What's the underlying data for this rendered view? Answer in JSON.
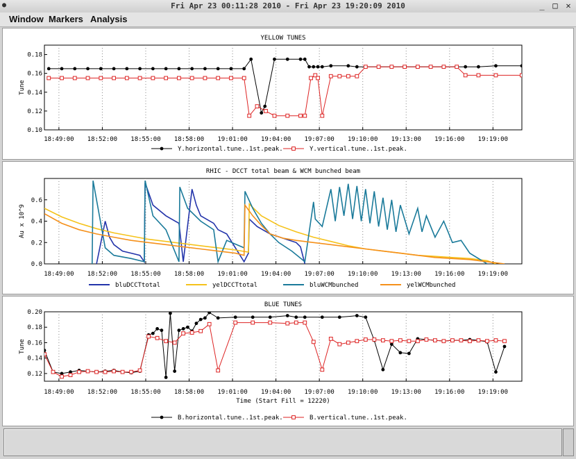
{
  "window": {
    "title": "Fri Apr 23 00:11:28 2010    -    Fri Apr 23 19:20:09 2010",
    "title_icon": "app-icon",
    "buttons": [
      "minimize-icon",
      "maximize-icon",
      "close-icon"
    ]
  },
  "menu": {
    "items": [
      "Window",
      "Markers",
      "Analysis"
    ]
  },
  "colors": {
    "black_series": "#000000",
    "red_series": "#dd2222",
    "bluDCCTtotal": "#2233aa",
    "yelDCCTtotal": "#f5c21a",
    "bluWCMbunched": "#1a7a9a",
    "yelWCMbunched": "#f5901a"
  },
  "chart_data": [
    {
      "type": "line",
      "title": "YELLOW TUNES",
      "ylabel": "Tune",
      "xlabel": "",
      "xlim": [
        18.8,
        19.35
      ],
      "ylim": [
        0.1,
        0.19
      ],
      "yticks": [
        0.1,
        0.12,
        0.14,
        0.16,
        0.18
      ],
      "ytick_labels": [
        "0.10",
        "0.12",
        "0.14",
        "0.16",
        "0.18"
      ],
      "xticks": [
        18.8167,
        18.8667,
        18.9167,
        18.9667,
        19.0167,
        19.0667,
        19.1167,
        19.1667,
        19.2167,
        19.2667,
        19.3167
      ],
      "xtick_labels": [
        "18:49:00",
        "18:52:00",
        "18:55:00",
        "18:58:00",
        "19:01:00",
        "19:04:00",
        "19:07:00",
        "19:10:00",
        "19:13:00",
        "19:16:00",
        "19:19:00"
      ],
      "grid": "vertical-dotted",
      "legend": "bottom",
      "series": [
        {
          "name": "Y.horizontal.tune..1st.peak.",
          "color": "#000000",
          "marker": "filled-circle",
          "x": [
            18.805,
            18.82,
            18.835,
            18.85,
            18.865,
            18.88,
            18.895,
            18.91,
            18.925,
            18.94,
            18.955,
            18.97,
            18.985,
            19.0,
            19.015,
            19.03,
            19.038,
            19.05,
            19.054,
            19.065,
            19.08,
            19.095,
            19.1,
            19.105,
            19.11,
            19.115,
            19.12,
            19.13,
            19.15,
            19.16,
            19.17,
            19.185,
            19.2,
            19.215,
            19.23,
            19.245,
            19.26,
            19.275,
            19.285,
            19.3,
            19.32,
            19.35
          ],
          "y": [
            0.165,
            0.165,
            0.165,
            0.165,
            0.165,
            0.165,
            0.165,
            0.165,
            0.165,
            0.165,
            0.165,
            0.165,
            0.165,
            0.165,
            0.165,
            0.165,
            0.175,
            0.118,
            0.125,
            0.175,
            0.175,
            0.175,
            0.175,
            0.167,
            0.167,
            0.167,
            0.167,
            0.168,
            0.168,
            0.167,
            0.167,
            0.167,
            0.167,
            0.167,
            0.167,
            0.167,
            0.167,
            0.167,
            0.167,
            0.167,
            0.168,
            0.168
          ]
        },
        {
          "name": "Y.vertical.tune..1st.peak.",
          "color": "#dd2222",
          "marker": "open-square",
          "x": [
            18.805,
            18.82,
            18.835,
            18.85,
            18.865,
            18.88,
            18.895,
            18.91,
            18.925,
            18.94,
            18.955,
            18.97,
            18.985,
            19.0,
            19.015,
            19.03,
            19.036,
            19.045,
            19.055,
            19.065,
            19.08,
            19.095,
            19.1,
            19.107,
            19.112,
            19.115,
            19.12,
            19.13,
            19.14,
            19.15,
            19.16,
            19.17,
            19.185,
            19.2,
            19.215,
            19.23,
            19.245,
            19.26,
            19.275,
            19.285,
            19.3,
            19.32,
            19.35
          ],
          "y": [
            0.155,
            0.155,
            0.155,
            0.155,
            0.155,
            0.155,
            0.155,
            0.155,
            0.155,
            0.155,
            0.155,
            0.155,
            0.155,
            0.155,
            0.155,
            0.155,
            0.115,
            0.125,
            0.12,
            0.115,
            0.115,
            0.115,
            0.115,
            0.155,
            0.158,
            0.155,
            0.115,
            0.157,
            0.157,
            0.157,
            0.157,
            0.167,
            0.167,
            0.167,
            0.167,
            0.167,
            0.167,
            0.167,
            0.167,
            0.158,
            0.158,
            0.158,
            0.158
          ]
        }
      ]
    },
    {
      "type": "line",
      "title": "RHIC  -  DCCT total beam & WCM bunched beam",
      "ylabel": "Au x 10^9",
      "xlabel": "",
      "xlim": [
        18.8,
        19.35
      ],
      "ylim": [
        0.0,
        0.8
      ],
      "yticks": [
        0.0,
        0.2,
        0.4,
        0.6
      ],
      "ytick_labels": [
        "0.0",
        "0.2",
        "0.4",
        "0.6"
      ],
      "xticks": [
        18.8167,
        18.8667,
        18.9167,
        18.9667,
        19.0167,
        19.0667,
        19.1167,
        19.1667,
        19.2167,
        19.2667,
        19.3167
      ],
      "xtick_labels": [
        "18:49:00",
        "18:52:00",
        "18:55:00",
        "18:58:00",
        "19:01:00",
        "19:04:00",
        "19:07:00",
        "19:10:00",
        "19:13:00",
        "19:16:00",
        "19:19:00"
      ],
      "grid": "vertical-dotted",
      "legend": "bottom",
      "series": [
        {
          "name": "bluDCCTtotal",
          "color": "#2233aa",
          "x": [
            18.86,
            18.87,
            18.875,
            18.88,
            18.89,
            18.9,
            18.91,
            18.915,
            18.916,
            18.925,
            18.94,
            18.955,
            18.96,
            18.97,
            18.975,
            18.98,
            18.995,
            19.0,
            19.01,
            19.03,
            19.035,
            19.036,
            19.045,
            19.06,
            19.075,
            19.09,
            19.095,
            19.1
          ],
          "y": [
            0.0,
            0.4,
            0.25,
            0.18,
            0.12,
            0.1,
            0.08,
            0.02,
            0.76,
            0.55,
            0.45,
            0.38,
            0.02,
            0.7,
            0.55,
            0.45,
            0.38,
            0.32,
            0.28,
            0.02,
            0.1,
            0.42,
            0.35,
            0.28,
            0.24,
            0.2,
            0.16,
            0.0
          ]
        },
        {
          "name": "yelDCCTtotal",
          "color": "#f5c21a",
          "x": [
            18.8,
            18.82,
            18.84,
            18.86,
            18.88,
            18.9,
            18.92,
            18.94,
            18.96,
            18.98,
            19.0,
            19.02,
            19.035,
            19.036,
            19.05,
            19.07,
            19.09,
            19.11,
            19.13,
            19.15,
            19.17,
            19.19,
            19.21,
            19.23,
            19.25,
            19.27,
            19.29,
            19.31,
            19.32
          ],
          "y": [
            0.52,
            0.44,
            0.38,
            0.33,
            0.29,
            0.26,
            0.23,
            0.21,
            0.19,
            0.17,
            0.15,
            0.13,
            0.11,
            0.56,
            0.45,
            0.36,
            0.3,
            0.25,
            0.21,
            0.17,
            0.14,
            0.12,
            0.1,
            0.08,
            0.07,
            0.06,
            0.05,
            0.03,
            0.0
          ]
        },
        {
          "name": "bluWCMbunched",
          "color": "#1a7a9a",
          "x": [
            18.855,
            18.856,
            18.87,
            18.88,
            18.9,
            18.915,
            18.916,
            18.925,
            18.94,
            18.955,
            18.956,
            18.965,
            18.98,
            18.995,
            19.0,
            19.01,
            19.03,
            19.031,
            19.04,
            19.05,
            19.06,
            19.07,
            19.085,
            19.1,
            19.11,
            19.112,
            19.12,
            19.13,
            19.135,
            19.14,
            19.145,
            19.15,
            19.155,
            19.16,
            19.165,
            19.17,
            19.175,
            19.18,
            19.185,
            19.19,
            19.195,
            19.2,
            19.205,
            19.21,
            19.22,
            19.23,
            19.235,
            19.24,
            19.25,
            19.26,
            19.27,
            19.28,
            19.29,
            19.3,
            19.31
          ],
          "y": [
            0.0,
            0.78,
            0.15,
            0.08,
            0.05,
            0.02,
            0.78,
            0.45,
            0.32,
            0.02,
            0.72,
            0.52,
            0.4,
            0.32,
            0.02,
            0.22,
            0.15,
            0.68,
            0.52,
            0.38,
            0.28,
            0.2,
            0.12,
            0.02,
            0.58,
            0.42,
            0.35,
            0.7,
            0.4,
            0.72,
            0.45,
            0.75,
            0.42,
            0.73,
            0.4,
            0.7,
            0.38,
            0.68,
            0.35,
            0.62,
            0.32,
            0.6,
            0.3,
            0.55,
            0.28,
            0.52,
            0.3,
            0.45,
            0.25,
            0.4,
            0.2,
            0.22,
            0.1,
            0.05,
            0.0
          ]
        },
        {
          "name": "yelWCMbunched",
          "color": "#f5901a",
          "x": [
            18.8,
            18.82,
            18.84,
            18.86,
            18.88,
            18.9,
            18.92,
            18.94,
            18.96,
            18.98,
            19.0,
            19.02,
            19.03,
            19.031,
            19.04,
            19.05,
            19.06,
            19.075,
            19.09,
            19.11,
            19.13,
            19.15,
            19.17,
            19.19,
            19.21,
            19.23,
            19.25,
            19.27,
            19.29,
            19.31,
            19.33
          ],
          "y": [
            0.47,
            0.38,
            0.32,
            0.28,
            0.25,
            0.22,
            0.2,
            0.18,
            0.16,
            0.14,
            0.12,
            0.1,
            0.08,
            0.55,
            0.45,
            0.36,
            0.28,
            0.24,
            0.22,
            0.2,
            0.18,
            0.16,
            0.14,
            0.12,
            0.1,
            0.08,
            0.06,
            0.05,
            0.04,
            0.02,
            0.0
          ]
        }
      ]
    },
    {
      "type": "line",
      "title": "BLUE TUNES",
      "ylabel": "Tune",
      "xlabel": "Time (Start Fill = 12220)",
      "xlim": [
        18.8,
        19.35
      ],
      "ylim": [
        0.11,
        0.2
      ],
      "yticks": [
        0.12,
        0.14,
        0.16,
        0.18,
        0.2
      ],
      "ytick_labels": [
        "0.12",
        "0.14",
        "0.16",
        "0.18",
        "0.20"
      ],
      "xticks": [
        18.8167,
        18.8667,
        18.9167,
        18.9667,
        19.0167,
        19.0667,
        19.1167,
        19.1667,
        19.2167,
        19.2667,
        19.3167
      ],
      "xtick_labels": [
        "18:49:00",
        "18:52:00",
        "18:55:00",
        "18:58:00",
        "19:01:00",
        "19:04:00",
        "19:07:00",
        "19:10:00",
        "19:13:00",
        "19:16:00",
        "19:19:00"
      ],
      "grid": "vertical-dotted",
      "legend": "bottom",
      "series": [
        {
          "name": "B.horizontal.tune..1st.peak.",
          "color": "#000000",
          "marker": "filled-circle",
          "x": [
            18.8,
            18.81,
            18.82,
            18.83,
            18.84,
            18.85,
            18.86,
            18.87,
            18.88,
            18.89,
            18.9,
            18.91,
            18.92,
            18.925,
            18.93,
            18.935,
            18.94,
            18.945,
            18.95,
            18.955,
            18.96,
            18.965,
            18.97,
            18.975,
            18.98,
            18.985,
            18.99,
            19.0,
            19.02,
            19.04,
            19.06,
            19.08,
            19.09,
            19.1,
            19.12,
            19.14,
            19.16,
            19.17,
            19.18,
            19.19,
            19.2,
            19.21,
            19.22,
            19.23,
            19.24,
            19.25,
            19.26,
            19.27,
            19.28,
            19.29,
            19.3,
            19.31,
            19.32,
            19.33
          ],
          "y": [
            0.15,
            0.122,
            0.12,
            0.122,
            0.124,
            0.123,
            0.122,
            0.123,
            0.124,
            0.122,
            0.121,
            0.123,
            0.17,
            0.172,
            0.178,
            0.176,
            0.115,
            0.198,
            0.123,
            0.176,
            0.178,
            0.18,
            0.175,
            0.185,
            0.19,
            0.192,
            0.199,
            0.192,
            0.193,
            0.193,
            0.193,
            0.195,
            0.193,
            0.193,
            0.193,
            0.193,
            0.195,
            0.193,
            0.163,
            0.125,
            0.158,
            0.147,
            0.146,
            0.165,
            0.164,
            0.163,
            0.162,
            0.163,
            0.163,
            0.164,
            0.163,
            0.161,
            0.122,
            0.155
          ]
        },
        {
          "name": "B.vertical.tune..1st.peak.",
          "color": "#dd2222",
          "marker": "open-square",
          "x": [
            18.8,
            18.81,
            18.82,
            18.83,
            18.84,
            18.85,
            18.86,
            18.87,
            18.88,
            18.89,
            18.9,
            18.91,
            18.92,
            18.93,
            18.94,
            18.95,
            18.96,
            18.97,
            18.98,
            18.99,
            19.0,
            19.02,
            19.04,
            19.06,
            19.08,
            19.09,
            19.1,
            19.11,
            19.12,
            19.13,
            19.14,
            19.15,
            19.16,
            19.17,
            19.18,
            19.19,
            19.2,
            19.21,
            19.22,
            19.23,
            19.24,
            19.25,
            19.26,
            19.27,
            19.28,
            19.29,
            19.3,
            19.31,
            19.32,
            19.33
          ],
          "y": [
            0.145,
            0.122,
            0.116,
            0.118,
            0.122,
            0.123,
            0.122,
            0.122,
            0.123,
            0.122,
            0.122,
            0.124,
            0.168,
            0.166,
            0.162,
            0.16,
            0.172,
            0.173,
            0.175,
            0.184,
            0.124,
            0.186,
            0.186,
            0.186,
            0.185,
            0.186,
            0.186,
            0.161,
            0.125,
            0.165,
            0.158,
            0.16,
            0.162,
            0.164,
            0.164,
            0.163,
            0.162,
            0.163,
            0.162,
            0.162,
            0.164,
            0.163,
            0.162,
            0.163,
            0.163,
            0.162,
            0.163,
            0.162,
            0.163,
            0.162
          ]
        }
      ]
    }
  ]
}
